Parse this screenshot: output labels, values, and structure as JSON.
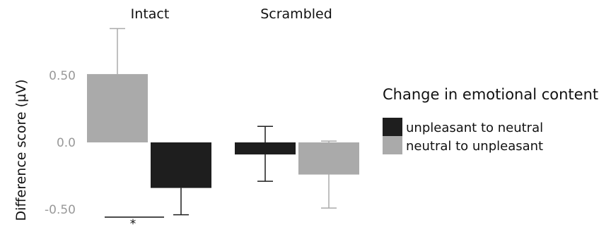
{
  "chart_data": {
    "type": "bar",
    "ylabel": "Difference score (µV)",
    "ylim": [
      -0.58,
      0.9
    ],
    "yticks": [
      {
        "value": 0.5,
        "label": "0.50"
      },
      {
        "value": 0.0,
        "label": "0.0"
      },
      {
        "value": -0.5,
        "label": "-0.50"
      }
    ],
    "groups": [
      "Intact",
      "Scrambled"
    ],
    "series": [
      {
        "name": "unpleasant to neutral",
        "color": "#1e1e1e",
        "values": [
          -0.34,
          -0.09
        ],
        "error_low": [
          -0.54,
          -0.29
        ],
        "error_high": [
          -0.34,
          0.12
        ]
      },
      {
        "name": "neutral to unpleasant",
        "color": "#aaaaaa",
        "values": [
          0.51,
          -0.24
        ],
        "error_low": [
          0.51,
          -0.49
        ],
        "error_high": [
          0.85,
          0.01
        ]
      }
    ],
    "bar_order": [
      {
        "group": 0,
        "series": 1
      },
      {
        "group": 0,
        "series": 0
      },
      {
        "group": 1,
        "series": 0
      },
      {
        "group": 1,
        "series": 1
      }
    ],
    "legend": {
      "title": "Change in emotional content",
      "position": "right"
    },
    "annotations": [
      {
        "text": "*",
        "between_bars": [
          0,
          1
        ],
        "position": "bottom"
      }
    ]
  }
}
